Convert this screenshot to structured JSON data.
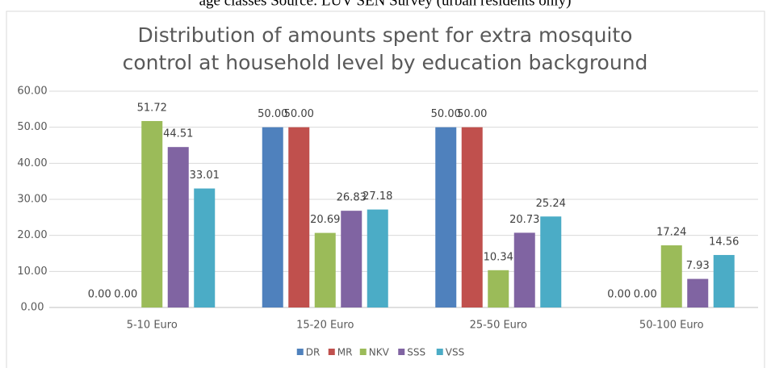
{
  "caption": "age classes Source: LUV SEN Survey (urban residents only)",
  "chart_data": {
    "type": "bar",
    "title": [
      "Distribution of amounts spent for extra mosquito",
      "control at household level by education background"
    ],
    "categories": [
      "5-10 Euro",
      "15-20 Euro",
      "25-50 Euro",
      "50-100 Euro"
    ],
    "series": [
      {
        "name": "DR",
        "color": "#4f81bd",
        "values": [
          0,
          50,
          50,
          0
        ],
        "value_labels": [
          "0.00",
          "50.00",
          "50.00",
          "0.00"
        ]
      },
      {
        "name": "MR",
        "color": "#c0504d",
        "values": [
          0,
          50,
          50,
          0
        ],
        "value_labels": [
          "0.00",
          "50.00",
          "50.00",
          "0.00"
        ]
      },
      {
        "name": "NKV",
        "color": "#9bbb59",
        "values": [
          51.72,
          20.69,
          10.34,
          17.24
        ],
        "value_labels": [
          "51.72",
          "20.69",
          "10.34",
          "17.24"
        ]
      },
      {
        "name": "SSS",
        "color": "#8064a2",
        "values": [
          44.51,
          26.83,
          20.73,
          7.93
        ],
        "value_labels": [
          "44.51",
          "26.83",
          "20.73",
          "7.93"
        ]
      },
      {
        "name": "VSS",
        "color": "#4bacc6",
        "values": [
          33.01,
          27.18,
          25.24,
          14.56
        ],
        "value_labels": [
          "33.01",
          "27.18",
          "25.24",
          "14.56"
        ]
      }
    ],
    "ylim": [
      0,
      60
    ],
    "yticks": [
      {
        "value": 0,
        "label": "0.00"
      },
      {
        "value": 10,
        "label": "10.00"
      },
      {
        "value": 20,
        "label": "20.00"
      },
      {
        "value": 30,
        "label": "30.00"
      },
      {
        "value": 40,
        "label": "40.00"
      },
      {
        "value": 50,
        "label": "50.00"
      },
      {
        "value": 60,
        "label": "60.00"
      }
    ],
    "grid": true,
    "legend": "bottom"
  }
}
